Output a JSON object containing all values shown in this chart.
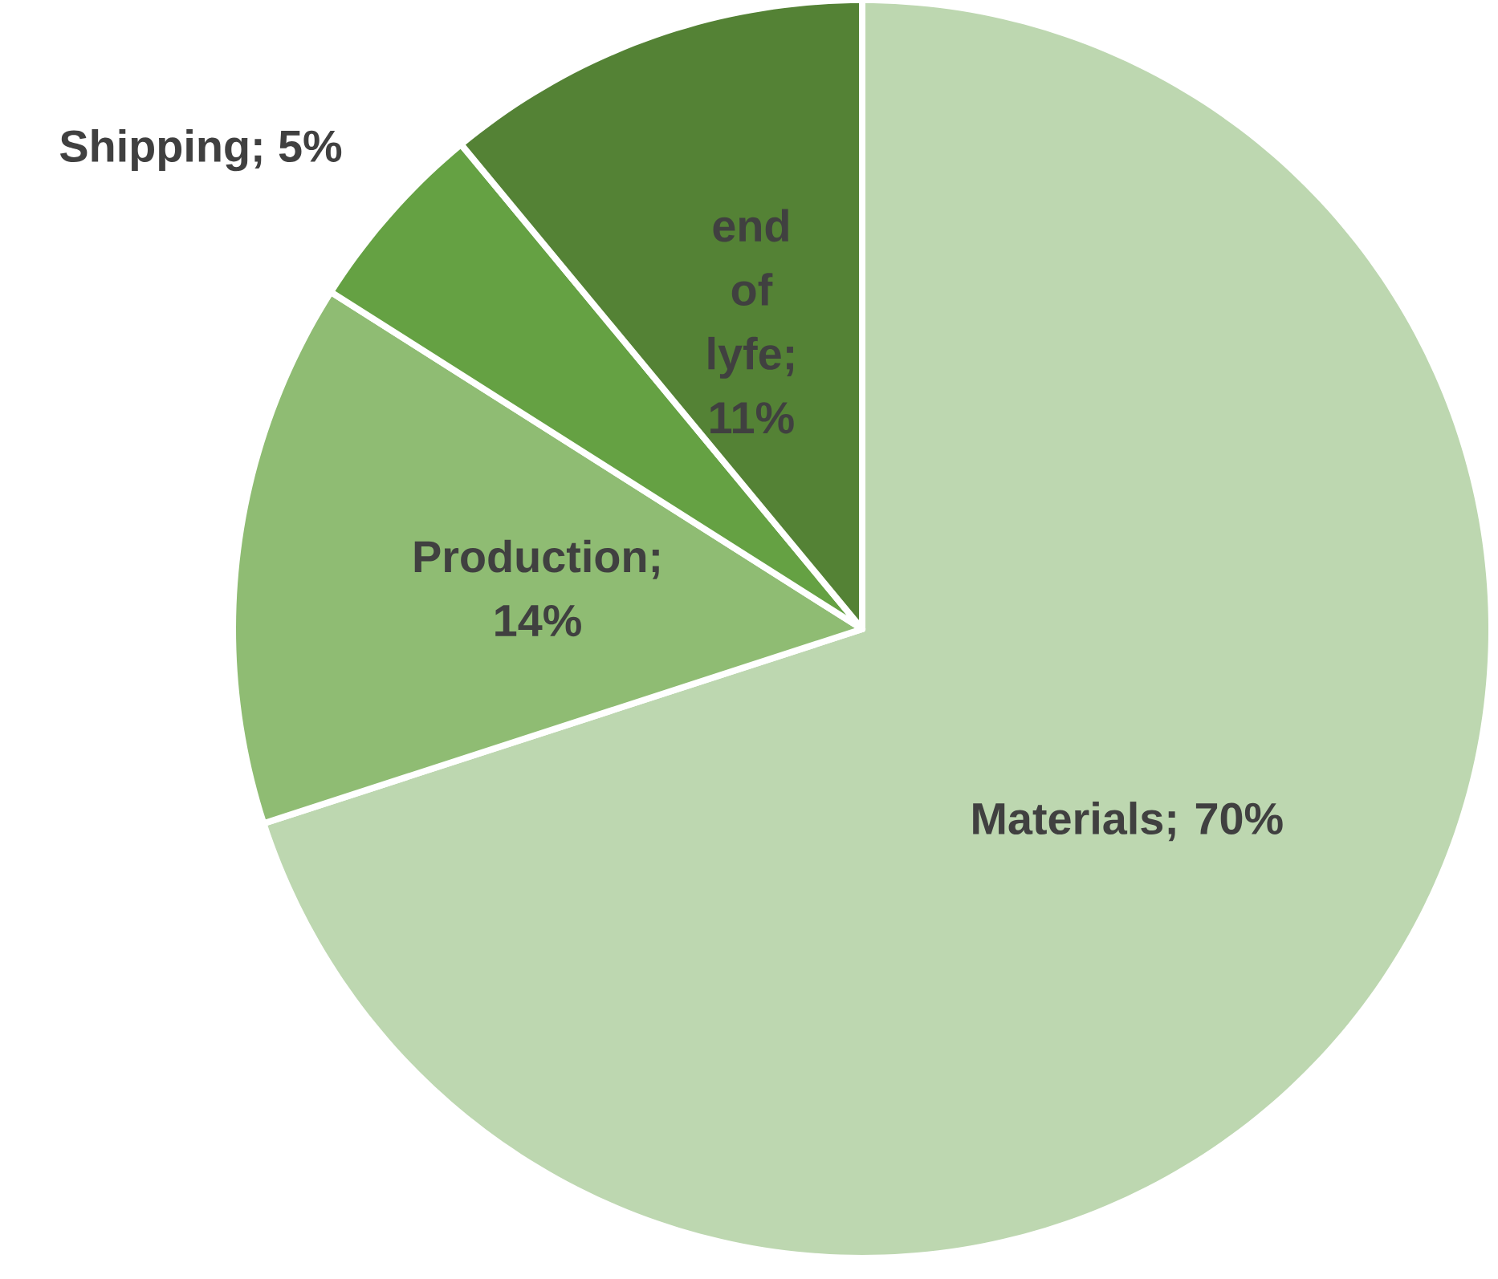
{
  "chart_data": {
    "type": "pie",
    "categories": [
      "Materials",
      "Production",
      "Shipping",
      "end of lyfe"
    ],
    "values": [
      70,
      14,
      5,
      11
    ],
    "value_labels": [
      "; 70%",
      "; 14%",
      "; 5%",
      "; 11%"
    ],
    "colors": [
      "#bdd7b0",
      "#8fbc73",
      "#65a143",
      "#548235"
    ]
  }
}
